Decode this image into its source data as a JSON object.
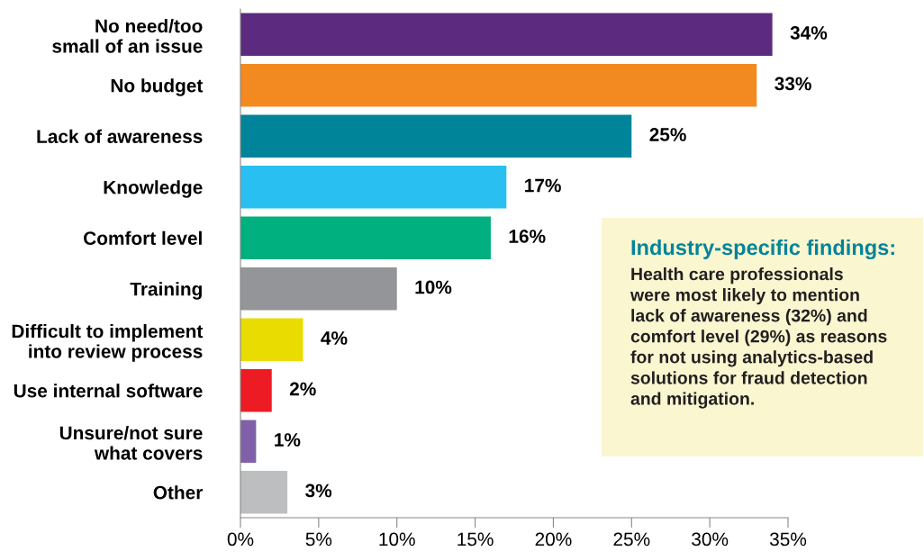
{
  "chart_data": {
    "type": "bar",
    "orientation": "horizontal",
    "categories": [
      "No need/too\nsmall of an issue",
      "No budget",
      "Lack of awareness",
      "Knowledge",
      "Comfort level",
      "Training",
      "Difficult to implement\ninto review process",
      "Use internal software",
      "Unsure/not sure\nwhat covers",
      "Other"
    ],
    "values": [
      34,
      33,
      25,
      17,
      16,
      10,
      4,
      2,
      1,
      3
    ],
    "colors": [
      "#5c2a7e",
      "#f28a21",
      "#00849a",
      "#29bff0",
      "#00b07f",
      "#939598",
      "#e9dc00",
      "#ed1c24",
      "#8061a9",
      "#bcbec0"
    ],
    "value_labels": [
      "34%",
      "33%",
      "25%",
      "17%",
      "16%",
      "10%",
      "4%",
      "2%",
      "1%",
      "3%"
    ],
    "xlim": [
      0,
      35
    ],
    "xticks": [
      {
        "value": 0,
        "label": "0%"
      },
      {
        "value": 5,
        "label": "5%"
      },
      {
        "value": 10,
        "label": "10%"
      },
      {
        "value": 15,
        "label": "15%"
      },
      {
        "value": 20,
        "label": "20%"
      },
      {
        "value": 25,
        "label": "25%"
      },
      {
        "value": 30,
        "label": "30%"
      },
      {
        "value": 35,
        "label": "35%"
      }
    ],
    "grid": false,
    "legend": false,
    "annotations": [
      "Industry-specific findings:",
      "Health care professionals\nwere most likely to mention\nlack of awareness (32%) and\ncomfort level (29%) as reasons\nfor not using analytics-based\nsolutions for fraud detection\nand mitigation."
    ]
  }
}
